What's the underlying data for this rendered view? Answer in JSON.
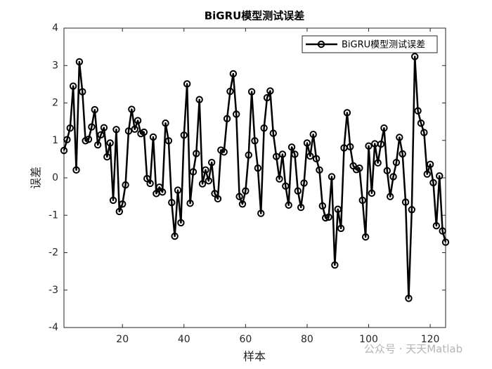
{
  "chart_data": {
    "type": "line",
    "title": "BiGRU模型测试误差",
    "xlabel": "样本",
    "ylabel": "误差",
    "x": [
      1,
      2,
      3,
      4,
      5,
      6,
      7,
      8,
      9,
      10,
      11,
      12,
      13,
      14,
      15,
      16,
      17,
      18,
      19,
      20,
      21,
      22,
      23,
      24,
      25,
      26,
      27,
      28,
      29,
      30,
      31,
      32,
      33,
      34,
      35,
      36,
      37,
      38,
      39,
      40,
      41,
      42,
      43,
      44,
      45,
      46,
      47,
      48,
      49,
      50,
      51,
      52,
      53,
      54,
      55,
      56,
      57,
      58,
      59,
      60,
      61,
      62,
      63,
      64,
      65,
      66,
      67,
      68,
      69,
      70,
      71,
      72,
      73,
      74,
      75,
      76,
      77,
      78,
      79,
      80,
      81,
      82,
      83,
      84,
      85,
      86,
      87,
      88,
      89,
      90,
      91,
      92,
      93,
      94,
      95,
      96,
      97,
      98,
      99,
      100,
      101,
      102,
      103,
      104,
      105,
      106,
      107,
      108,
      109,
      110,
      111,
      112,
      113,
      114,
      115,
      116,
      117,
      118,
      119,
      120,
      121,
      122,
      123,
      124,
      125
    ],
    "series": [
      {
        "name": "BiGRU模型测试误差",
        "color": "#000000",
        "values": [
          0.73,
          1.02,
          1.33,
          2.45,
          0.21,
          3.1,
          2.3,
          0.99,
          1.03,
          1.36,
          1.82,
          0.88,
          1.15,
          1.34,
          0.56,
          0.93,
          -0.6,
          1.29,
          -0.9,
          -0.7,
          -0.19,
          1.25,
          1.83,
          1.3,
          1.53,
          1.18,
          1.22,
          -0.02,
          -0.15,
          1.09,
          -0.42,
          -0.25,
          -0.38,
          1.46,
          0.99,
          -0.66,
          -1.56,
          -0.33,
          -1.2,
          1.14,
          2.51,
          -0.68,
          0.16,
          0.65,
          2.09,
          -0.16,
          0.21,
          -0.08,
          0.41,
          -0.42,
          -0.56,
          0.74,
          0.69,
          1.58,
          2.31,
          2.78,
          1.7,
          -0.5,
          -0.7,
          -0.35,
          0.61,
          2.3,
          0.99,
          0.26,
          -0.95,
          1.33,
          2.14,
          2.32,
          1.19,
          0.57,
          -0.03,
          0.63,
          -0.22,
          -0.73,
          0.82,
          0.63,
          -0.35,
          -0.79,
          -0.14,
          0.93,
          0.58,
          1.16,
          0.51,
          0.21,
          -0.75,
          -1.07,
          -1.05,
          0.03,
          -2.33,
          -0.84,
          -1.35,
          0.8,
          1.74,
          0.83,
          0.32,
          0.22,
          0.26,
          -0.6,
          -1.58,
          0.85,
          -0.41,
          0.91,
          0.4,
          0.9,
          1.33,
          0.19,
          -0.5,
          0.03,
          0.41,
          1.08,
          0.64,
          -0.65,
          -3.22,
          -0.85,
          3.24,
          1.79,
          1.46,
          1.21,
          0.1,
          0.36,
          -0.13,
          -1.28,
          0.05,
          -1.42,
          -1.72
        ]
      }
    ],
    "xlim": [
      1,
      125
    ],
    "xticks": [
      20,
      40,
      60,
      80,
      100,
      120
    ],
    "ylim": [
      -4,
      4
    ],
    "yticks": [
      -4,
      -3,
      -2,
      -1,
      0,
      1,
      2,
      3,
      4
    ],
    "legend": "upper right",
    "grid": false,
    "watermark": "公众号 · 天天Matlab"
  }
}
